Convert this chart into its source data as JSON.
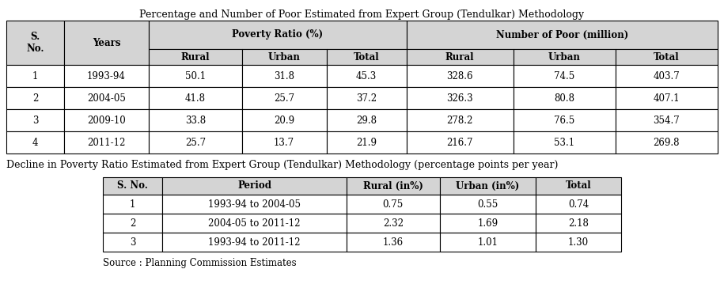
{
  "title1": "Percentage and Number of Poor Estimated from Expert Group (Tendulkar) Methodology",
  "title2": "Decline in Poverty Ratio Estimated from Expert Group (Tendulkar) Methodology (percentage points per year)",
  "source": "Source : Planning Commission Estimates",
  "table1": {
    "rows": [
      [
        "1",
        "1993-94",
        "50.1",
        "31.8",
        "45.3",
        "328.6",
        "74.5",
        "403.7"
      ],
      [
        "2",
        "2004-05",
        "41.8",
        "25.7",
        "37.2",
        "326.3",
        "80.8",
        "407.1"
      ],
      [
        "3",
        "2009-10",
        "33.8",
        "20.9",
        "29.8",
        "278.2",
        "76.5",
        "354.7"
      ],
      [
        "4",
        "2011-12",
        "25.7",
        "13.7",
        "21.9",
        "216.7",
        "53.1",
        "269.8"
      ]
    ]
  },
  "table2": {
    "col_headers": [
      "S. No.",
      "Period",
      "Rural (in%)",
      "Urban (in%)",
      "Total"
    ],
    "rows": [
      [
        "1",
        "1993-94 to 2004-05",
        "0.75",
        "0.55",
        "0.74"
      ],
      [
        "2",
        "2004-05 to 2011-12",
        "2.32",
        "1.69",
        "2.18"
      ],
      [
        "3",
        "1993-94 to 2011-12",
        "1.36",
        "1.01",
        "1.30"
      ]
    ]
  },
  "bg_color": "#ffffff",
  "header_bg": "#d4d4d4",
  "border_color": "#000000",
  "text_color": "#000000",
  "title_fontsize": 9.0,
  "header_fontsize": 8.5,
  "cell_fontsize": 8.5,
  "source_fontsize": 8.5
}
